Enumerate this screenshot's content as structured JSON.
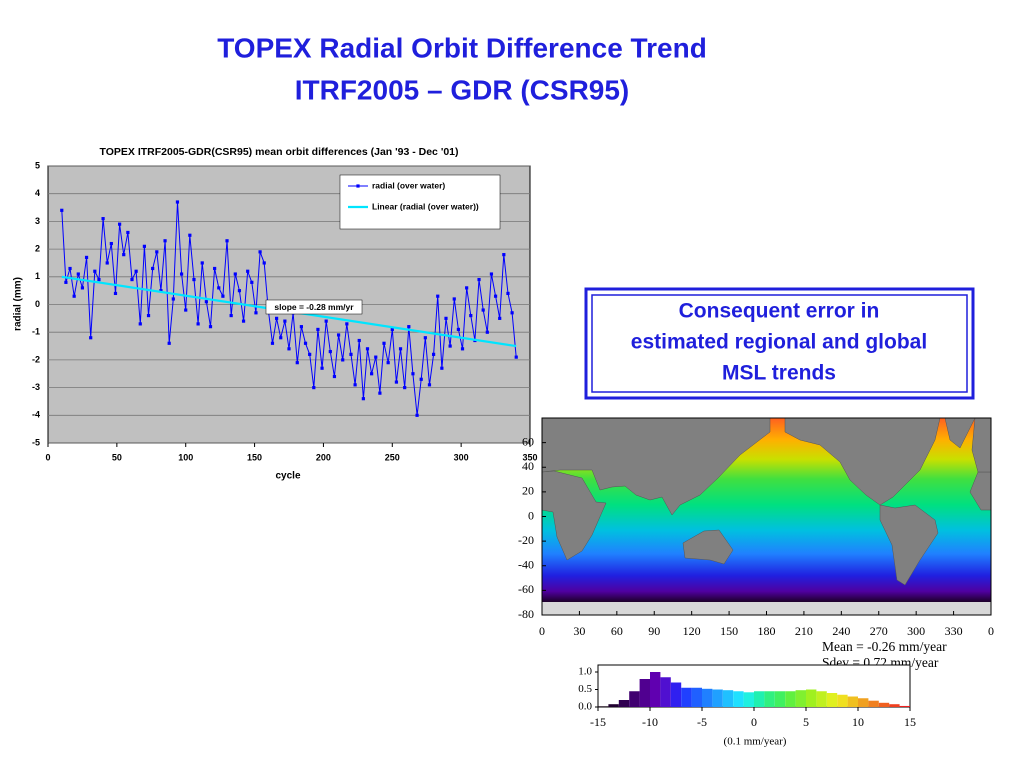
{
  "slide": {
    "title": [
      "TOPEX Radial Orbit Difference Trend",
      "ITRF2005 – GDR (CSR95)"
    ],
    "callout": [
      "Consequent error in",
      "estimated regional and global",
      "MSL trends"
    ]
  },
  "chart_data": [
    {
      "type": "line",
      "title": "TOPEX ITRF2005-GDR(CSR95) mean orbit differences (Jan '93 - Dec '01)",
      "xlabel": "cycle",
      "ylabel": "radial (mm)",
      "xlim": [
        0,
        350
      ],
      "ylim": [
        -5,
        5
      ],
      "xticks": [
        0,
        50,
        100,
        150,
        200,
        250,
        300,
        350
      ],
      "yticks": [
        -5,
        -4,
        -3,
        -2,
        -1,
        0,
        1,
        2,
        3,
        4,
        5
      ],
      "grid": true,
      "legend": "top-right",
      "annotation": "slope = -0.28 mm/yr",
      "series": [
        {
          "name": "radial (over water)",
          "color": "#0000ff",
          "marker": "square",
          "x": [
            10,
            13,
            16,
            19,
            22,
            25,
            28,
            31,
            34,
            37,
            40,
            43,
            46,
            49,
            52,
            55,
            58,
            61,
            64,
            67,
            70,
            73,
            76,
            79,
            82,
            85,
            88,
            91,
            94,
            97,
            100,
            103,
            106,
            109,
            112,
            115,
            118,
            121,
            124,
            127,
            130,
            133,
            136,
            139,
            142,
            145,
            148,
            151,
            154,
            157,
            160,
            163,
            166,
            169,
            172,
            175,
            178,
            181,
            184,
            187,
            190,
            193,
            196,
            199,
            202,
            205,
            208,
            211,
            214,
            217,
            220,
            223,
            226,
            229,
            232,
            235,
            238,
            241,
            244,
            247,
            250,
            253,
            256,
            259,
            262,
            265,
            268,
            271,
            274,
            277,
            280,
            283,
            286,
            289,
            292,
            295,
            298,
            301,
            304,
            307,
            310,
            313,
            316,
            319,
            322,
            325,
            328,
            331,
            334,
            337,
            340
          ],
          "values": [
            3.4,
            0.8,
            1.3,
            0.3,
            1.1,
            0.6,
            1.7,
            -1.2,
            1.2,
            0.9,
            3.1,
            1.5,
            2.2,
            0.4,
            2.9,
            1.8,
            2.6,
            0.9,
            1.2,
            -0.7,
            2.1,
            -0.4,
            1.3,
            1.9,
            0.5,
            2.3,
            -1.4,
            0.2,
            3.7,
            1.1,
            -0.2,
            2.5,
            0.9,
            -0.7,
            1.5,
            0.1,
            -0.8,
            1.3,
            0.6,
            0.3,
            2.3,
            -0.4,
            1.1,
            0.5,
            -0.6,
            1.2,
            0.8,
            -0.3,
            1.9,
            1.5,
            -0.2,
            -1.4,
            -0.5,
            -1.2,
            -0.6,
            -1.6,
            -0.3,
            -2.1,
            -0.8,
            -1.4,
            -1.8,
            -3.0,
            -0.9,
            -2.3,
            -0.6,
            -1.7,
            -2.6,
            -1.1,
            -2.0,
            -0.7,
            -1.8,
            -2.9,
            -1.3,
            -3.4,
            -1.6,
            -2.5,
            -1.9,
            -3.2,
            -1.4,
            -2.1,
            -0.9,
            -2.8,
            -1.6,
            -3.0,
            -0.8,
            -2.5,
            -4.0,
            -2.7,
            -1.2,
            -2.9,
            -1.8,
            0.3,
            -2.3,
            -0.5,
            -1.5,
            0.2,
            -0.9,
            -1.6,
            0.6,
            -0.4,
            -1.3,
            0.9,
            -0.2,
            -1.0,
            1.1,
            0.3,
            -0.5,
            1.8,
            0.4,
            -0.3,
            -1.9
          ]
        },
        {
          "name": "Linear (radial (over water))",
          "color": "#00e5ff",
          "marker": "none",
          "x": [
            10,
            340
          ],
          "values": [
            1.0,
            -1.5
          ]
        }
      ]
    },
    {
      "type": "map",
      "xlim": [
        0,
        360
      ],
      "ylim": [
        -80,
        80
      ],
      "xticks": [
        0,
        30,
        60,
        90,
        120,
        150,
        180,
        210,
        240,
        270,
        300,
        330,
        {
          "value": 360,
          "label": "0"
        }
      ],
      "yticks": [
        60,
        40,
        20,
        0,
        -20,
        -40,
        -60,
        -80
      ],
      "annotations": [
        "Mean = -0.26 mm/year",
        "Sdev =  0.72 mm/year"
      ]
    },
    {
      "type": "histogram",
      "xlabel": "(0.1 mm/year)",
      "xlim": [
        -15,
        15
      ],
      "ylim": [
        0,
        1.2
      ],
      "xticks": [
        -15,
        -10,
        -5,
        0,
        5,
        10,
        15
      ],
      "yticks": [
        {
          "value": 1.0,
          "label": "1.0"
        },
        {
          "value": 0.5,
          "label": "0.5"
        },
        {
          "value": 0.0,
          "label": "0.0"
        }
      ],
      "bins": [
        -15,
        -14,
        -13,
        -12,
        -11,
        -10,
        -9,
        -8,
        -7,
        -6,
        -5,
        -4,
        -3,
        -2,
        -1,
        0,
        1,
        2,
        3,
        4,
        5,
        6,
        7,
        8,
        9,
        10,
        11,
        12,
        13,
        14,
        15
      ],
      "values": [
        0.02,
        0.08,
        0.2,
        0.45,
        0.8,
        1.0,
        0.85,
        0.7,
        0.55,
        0.55,
        0.52,
        0.5,
        0.48,
        0.45,
        0.42,
        0.45,
        0.45,
        0.45,
        0.45,
        0.48,
        0.5,
        0.45,
        0.4,
        0.35,
        0.3,
        0.25,
        0.18,
        0.12,
        0.08,
        0.03
      ],
      "colors": [
        "#100010",
        "#200030",
        "#300050",
        "#400070",
        "#500090",
        "#6000b0",
        "#5010d0",
        "#3020f0",
        "#2040ff",
        "#2060ff",
        "#2080ff",
        "#20a0ff",
        "#20c0ff",
        "#20e0ff",
        "#20f0e0",
        "#20f0b0",
        "#30f080",
        "#40f060",
        "#60f040",
        "#80f030",
        "#a0f020",
        "#c0f020",
        "#e0f020",
        "#f0e020",
        "#f0c020",
        "#f0a020",
        "#f08020",
        "#f06020",
        "#f04020",
        "#f02020"
      ]
    }
  ]
}
